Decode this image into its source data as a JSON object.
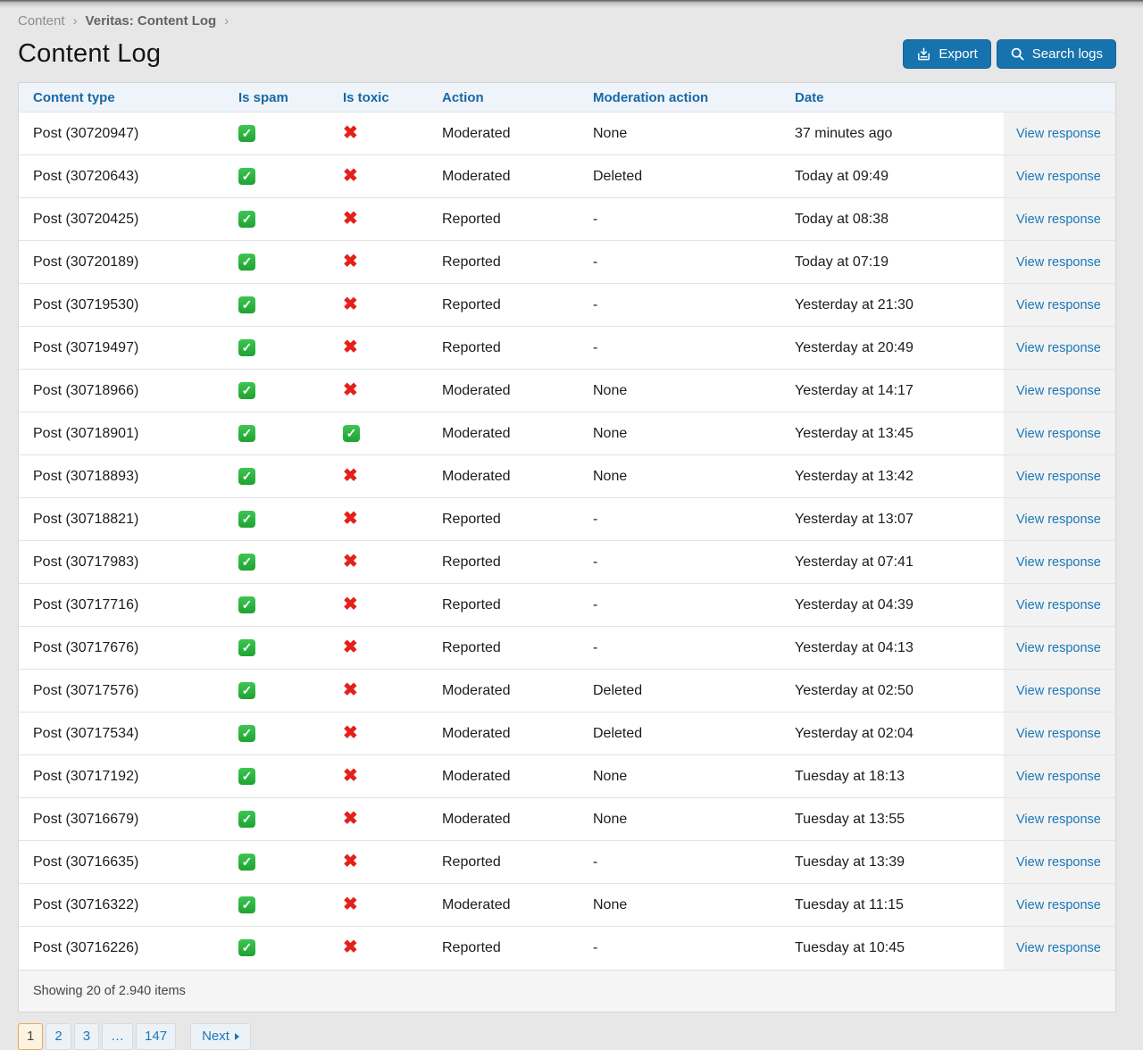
{
  "breadcrumb": {
    "items": [
      "Content",
      "Veritas: Content Log"
    ],
    "separator": "›"
  },
  "page": {
    "title": "Content Log"
  },
  "toolbar": {
    "export_label": "Export",
    "search_label": "Search logs",
    "export_icon": "download-tray-icon",
    "search_icon": "magnifier-icon"
  },
  "table": {
    "columns": [
      "Content type",
      "Is spam",
      "Is toxic",
      "Action",
      "Moderation action",
      "Date"
    ],
    "view_response_label": "View response",
    "rows": [
      {
        "content": "Post (30720947)",
        "is_spam": true,
        "is_toxic": false,
        "action": "Moderated",
        "moderation_action": "None",
        "date": "37 minutes ago"
      },
      {
        "content": "Post (30720643)",
        "is_spam": true,
        "is_toxic": false,
        "action": "Moderated",
        "moderation_action": "Deleted",
        "date": "Today at 09:49"
      },
      {
        "content": "Post (30720425)",
        "is_spam": true,
        "is_toxic": false,
        "action": "Reported",
        "moderation_action": "-",
        "date": "Today at 08:38"
      },
      {
        "content": "Post (30720189)",
        "is_spam": true,
        "is_toxic": false,
        "action": "Reported",
        "moderation_action": "-",
        "date": "Today at 07:19"
      },
      {
        "content": "Post (30719530)",
        "is_spam": true,
        "is_toxic": false,
        "action": "Reported",
        "moderation_action": "-",
        "date": "Yesterday at 21:30"
      },
      {
        "content": "Post (30719497)",
        "is_spam": true,
        "is_toxic": false,
        "action": "Reported",
        "moderation_action": "-",
        "date": "Yesterday at 20:49"
      },
      {
        "content": "Post (30718966)",
        "is_spam": true,
        "is_toxic": false,
        "action": "Moderated",
        "moderation_action": "None",
        "date": "Yesterday at 14:17"
      },
      {
        "content": "Post (30718901)",
        "is_spam": true,
        "is_toxic": true,
        "action": "Moderated",
        "moderation_action": "None",
        "date": "Yesterday at 13:45"
      },
      {
        "content": "Post (30718893)",
        "is_spam": true,
        "is_toxic": false,
        "action": "Moderated",
        "moderation_action": "None",
        "date": "Yesterday at 13:42"
      },
      {
        "content": "Post (30718821)",
        "is_spam": true,
        "is_toxic": false,
        "action": "Reported",
        "moderation_action": "-",
        "date": "Yesterday at 13:07"
      },
      {
        "content": "Post (30717983)",
        "is_spam": true,
        "is_toxic": false,
        "action": "Reported",
        "moderation_action": "-",
        "date": "Yesterday at 07:41"
      },
      {
        "content": "Post (30717716)",
        "is_spam": true,
        "is_toxic": false,
        "action": "Reported",
        "moderation_action": "-",
        "date": "Yesterday at 04:39"
      },
      {
        "content": "Post (30717676)",
        "is_spam": true,
        "is_toxic": false,
        "action": "Reported",
        "moderation_action": "-",
        "date": "Yesterday at 04:13"
      },
      {
        "content": "Post (30717576)",
        "is_spam": true,
        "is_toxic": false,
        "action": "Moderated",
        "moderation_action": "Deleted",
        "date": "Yesterday at 02:50"
      },
      {
        "content": "Post (30717534)",
        "is_spam": true,
        "is_toxic": false,
        "action": "Moderated",
        "moderation_action": "Deleted",
        "date": "Yesterday at 02:04"
      },
      {
        "content": "Post (30717192)",
        "is_spam": true,
        "is_toxic": false,
        "action": "Moderated",
        "moderation_action": "None",
        "date": "Tuesday at 18:13"
      },
      {
        "content": "Post (30716679)",
        "is_spam": true,
        "is_toxic": false,
        "action": "Moderated",
        "moderation_action": "None",
        "date": "Tuesday at 13:55"
      },
      {
        "content": "Post (30716635)",
        "is_spam": true,
        "is_toxic": false,
        "action": "Reported",
        "moderation_action": "-",
        "date": "Tuesday at 13:39"
      },
      {
        "content": "Post (30716322)",
        "is_spam": true,
        "is_toxic": false,
        "action": "Moderated",
        "moderation_action": "None",
        "date": "Tuesday at 11:15"
      },
      {
        "content": "Post (30716226)",
        "is_spam": true,
        "is_toxic": false,
        "action": "Reported",
        "moderation_action": "-",
        "date": "Tuesday at 10:45"
      }
    ],
    "footer": "Showing 20 of 2.940 items"
  },
  "pagination": {
    "pages": [
      "1",
      "2",
      "3",
      "…",
      "147"
    ],
    "current": "1",
    "next_label": "Next"
  },
  "icons": {
    "check_glyph": "✓",
    "cross_glyph": "✖"
  },
  "colors": {
    "button_blue": "#1673ae",
    "link_blue": "#1a77b8",
    "header_text_blue": "#1769a4",
    "check_green": "#27b43a",
    "cross_red": "#e3211a",
    "pagination_active_border": "#e9a94e",
    "pagination_active_bg": "#fdf3e2"
  }
}
